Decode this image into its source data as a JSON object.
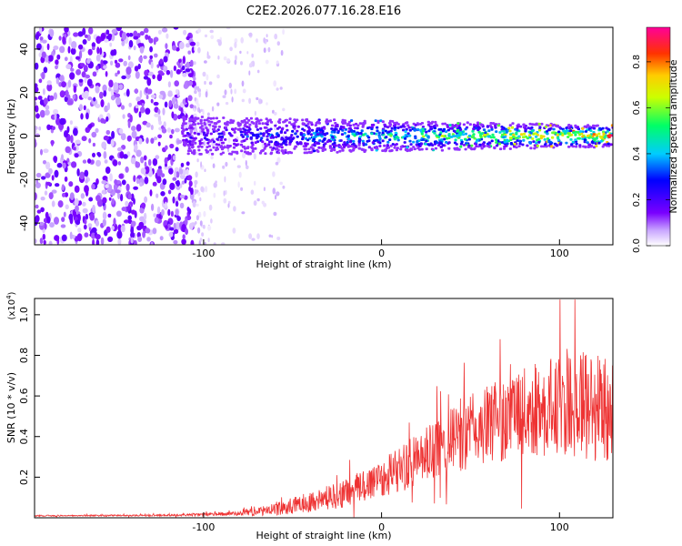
{
  "title": "C2E2.2026.077.16.28.E16",
  "chart_data": [
    {
      "type": "heatmap",
      "xlabel": "Height of straight line (km)",
      "ylabel": "Frequency (Hz)",
      "xlim": [
        -195,
        130
      ],
      "ylim": [
        -50,
        50
      ],
      "xticks": [
        -100,
        0,
        100
      ],
      "xtick_labels": [
        "-100",
        "0",
        "100"
      ],
      "yticks": [
        -40,
        -20,
        0,
        20,
        40
      ],
      "ytick_labels": [
        "-40",
        "-20",
        "0",
        "20",
        "40"
      ],
      "colorbar": {
        "label": "Normalized spectral amplitude",
        "range": [
          0.0,
          0.95
        ],
        "ticks": [
          0.0,
          0.2,
          0.4,
          0.6,
          0.8
        ],
        "tick_labels": [
          "0.0",
          "0.2",
          "0.4",
          "0.6",
          "0.8"
        ],
        "colormap": [
          "#ffffff",
          "#7a00ff",
          "#0000ff",
          "#00ccff",
          "#00ff66",
          "#ccff00",
          "#ffcc00",
          "#ff3300",
          "#ff0099"
        ]
      },
      "regions": [
        {
          "name": "noise",
          "x_from": -195,
          "x_to": -105,
          "freq_band": [
            -50,
            50
          ],
          "amplitude": 0.15
        },
        {
          "name": "transition",
          "x_from": -105,
          "x_to": -55,
          "freq_band": [
            -50,
            50
          ],
          "amplitude": 0.05
        },
        {
          "name": "signal-band",
          "x_from": -112,
          "x_to": 130,
          "freq_center": 0,
          "freq_halfwidth": 5,
          "amplitude_peak": 0.9
        }
      ]
    },
    {
      "type": "line",
      "xlabel": "Height of straight line (km)",
      "ylabel": "SNR (10 * v/v)",
      "y_multiplier": "(x10",
      "y_exponent": "4",
      "y_multiplier_close": ")",
      "xlim": [
        -195,
        130
      ],
      "ylim": [
        0,
        1.08
      ],
      "xticks": [
        -100,
        0,
        100
      ],
      "xtick_labels": [
        "-100",
        "0",
        "100"
      ],
      "yticks": [
        0.2,
        0.4,
        0.6,
        0.8,
        1.0
      ],
      "ytick_labels": [
        "0.2",
        "0.4",
        "0.6",
        "0.8",
        "1.0"
      ],
      "series": [
        {
          "name": "SNR",
          "color": "#ee3333",
          "envelope_x": [
            -195,
            -120,
            -80,
            -60,
            -40,
            -20,
            0,
            20,
            40,
            60,
            80,
            100,
            120,
            130
          ],
          "envelope_y": [
            0.01,
            0.012,
            0.02,
            0.04,
            0.08,
            0.12,
            0.2,
            0.28,
            0.38,
            0.46,
            0.52,
            0.55,
            0.55,
            0.55
          ],
          "spread": [
            0.003,
            0.004,
            0.01,
            0.03,
            0.05,
            0.07,
            0.1,
            0.13,
            0.17,
            0.2,
            0.22,
            0.25,
            0.28,
            0.28
          ]
        }
      ]
    }
  ]
}
